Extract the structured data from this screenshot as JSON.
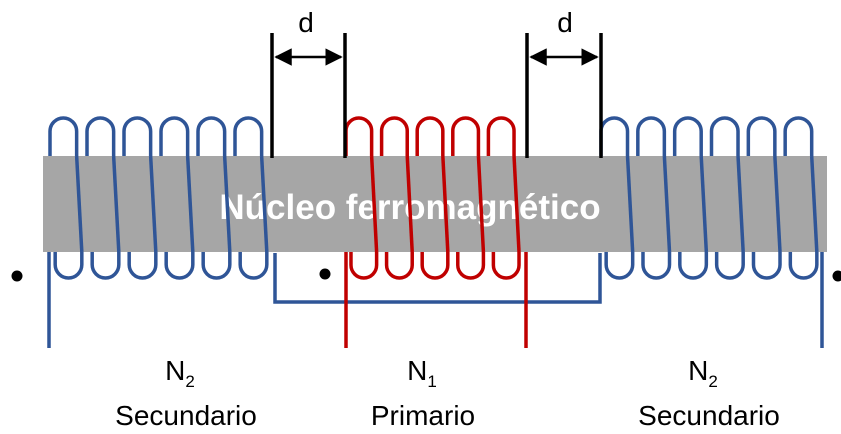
{
  "colors": {
    "core": "#a6a6a6",
    "secondary_coil": "#2f5597",
    "primary_coil": "#c00000",
    "dimension": "#000000"
  },
  "core": {
    "label": "Núcleo ferromagnético"
  },
  "gaps": [
    {
      "label": "d"
    },
    {
      "label": "d"
    }
  ],
  "coils": [
    {
      "symbol": "N",
      "subscript": "2",
      "name": "Secundario"
    },
    {
      "symbol": "N",
      "subscript": "1",
      "name": "Primario"
    },
    {
      "symbol": "N",
      "subscript": "2",
      "name": "Secundario"
    }
  ]
}
